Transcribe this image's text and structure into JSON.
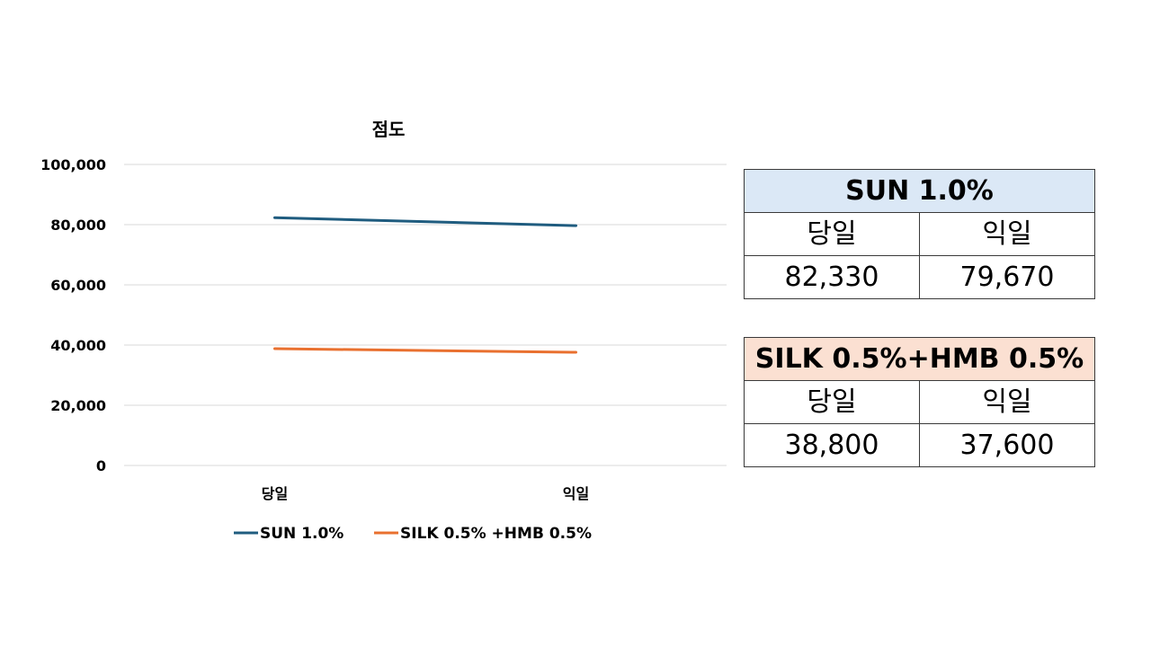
{
  "chart_data": {
    "type": "line",
    "title": "점도",
    "categories": [
      "당일",
      "익일"
    ],
    "ylim": [
      0,
      100000
    ],
    "yticks": [
      "0",
      "20,000",
      "40,000",
      "60,000",
      "80,000",
      "100,000"
    ],
    "grid": true,
    "legend": "bottom",
    "series": [
      {
        "name": "SUN 1.0%",
        "values": [
          82330,
          79670
        ],
        "color": "#1f5c7f"
      },
      {
        "name": "SILK 0.5% +HMB 0.5%",
        "values": [
          38800,
          37600
        ],
        "color": "#e9702f"
      }
    ]
  },
  "tables": [
    {
      "title": "SUN 1.0%",
      "headers": [
        "당일",
        "익일"
      ],
      "values": [
        "82,330",
        "79,670"
      ],
      "color": "#dbe8f6"
    },
    {
      "title": "SILK 0.5%+HMB 0.5%",
      "headers": [
        "당일",
        "익일"
      ],
      "values": [
        "38,800",
        "37,600"
      ],
      "color": "#fbe0d2"
    }
  ]
}
